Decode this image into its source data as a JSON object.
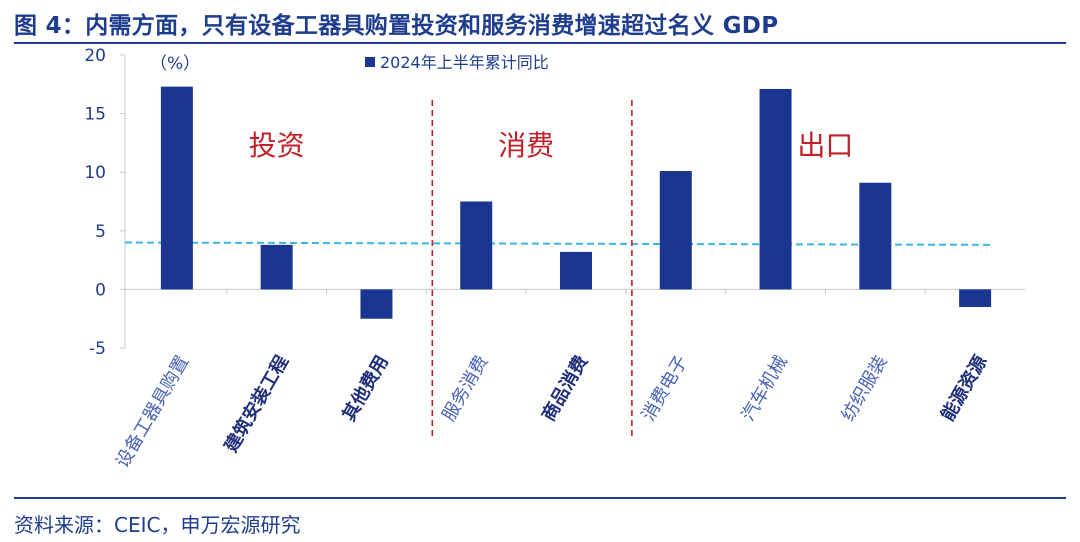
{
  "header": {
    "title": "图 4：内需方面，只有设备工器具购置投资和服务消费增速超过名义 GDP"
  },
  "footer": {
    "source": "资料来源：CEIC，申万宏源研究"
  },
  "colors": {
    "bar": "#1a3690",
    "reference": "#3ab7e8",
    "divider": "#c0202a",
    "section_label": "#c0202a",
    "text": "#1f3d8f",
    "axis": "#c8c8c8"
  },
  "chart_data": {
    "type": "bar",
    "title": "",
    "unit_label": "（%）",
    "series": [
      {
        "name": "2024年上半年累计同比",
        "values": [
          17.3,
          3.8,
          -2.5,
          7.5,
          3.2,
          10.1,
          17.1,
          9.1,
          -1.5
        ]
      }
    ],
    "categories": [
      "设备工器具购置",
      "建筑安装工程",
      "其他费用",
      "服务消费",
      "商品消费",
      "消费电子",
      "汽车机械",
      "纺织服装",
      "能源资源"
    ],
    "bold_categories": [
      "建筑安装工程",
      "其他费用",
      "商品消费",
      "能源资源"
    ],
    "yticks": [
      20,
      15,
      10,
      5,
      0,
      -5
    ],
    "ylim": [
      -5,
      20
    ],
    "reference_line": {
      "start": 4.0,
      "end": 3.8,
      "style": "dashed"
    },
    "section_dividers_after": [
      2,
      4
    ],
    "sections": [
      {
        "label": "投资",
        "first": 0,
        "last": 2
      },
      {
        "label": "消费",
        "first": 3,
        "last": 4
      },
      {
        "label": "出口",
        "first": 5,
        "last": 8
      }
    ],
    "legend_position": "top-center",
    "grid": false,
    "xlabel": "",
    "ylabel": ""
  }
}
